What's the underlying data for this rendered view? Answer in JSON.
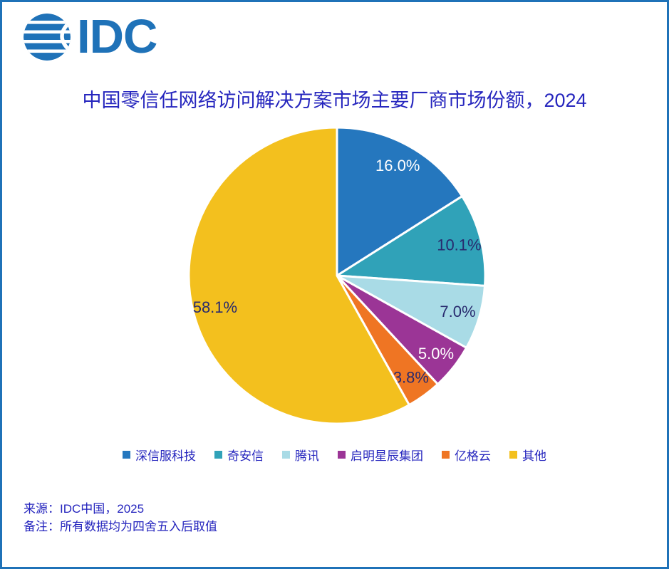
{
  "logo": {
    "text": "IDC"
  },
  "title": "中国零信任网络访问解决方案市场主要厂商市场份额，2024",
  "chart_data": {
    "type": "pie",
    "title": "中国零信任网络访问解决方案市场主要厂商市场份额，2024",
    "categories": [
      "深信服科技",
      "奇安信",
      "腾讯",
      "启明星辰集团",
      "亿格云",
      "其他"
    ],
    "values": [
      16.0,
      10.1,
      7.0,
      5.0,
      3.8,
      58.1
    ],
    "labels": [
      "16.0%",
      "10.1%",
      "7.0%",
      "5.0%",
      "3.8%",
      "58.1%"
    ],
    "colors": [
      "#2577BE",
      "#30A2B8",
      "#A9DBE6",
      "#9B3596",
      "#EF7523",
      "#F3C01E"
    ],
    "label_colors": [
      "#FFFFFF",
      "#282A6E",
      "#282A6E",
      "#FFFFFF",
      "#282A6E",
      "#282A6E"
    ],
    "unit": "%",
    "start_angle": "12-oclock",
    "direction": "clockwise",
    "legend_position": "bottom",
    "slice_border_color": "#FFFFFF"
  },
  "footer": {
    "source": "来源：IDC中国，2025",
    "note": "备注：所有数据均为四舍五入后取值"
  },
  "colors": {
    "frame_border": "#1F72B8",
    "logo_blue": "#1F72B8",
    "text_blue": "#2626BE",
    "label_navy": "#282A6E"
  }
}
